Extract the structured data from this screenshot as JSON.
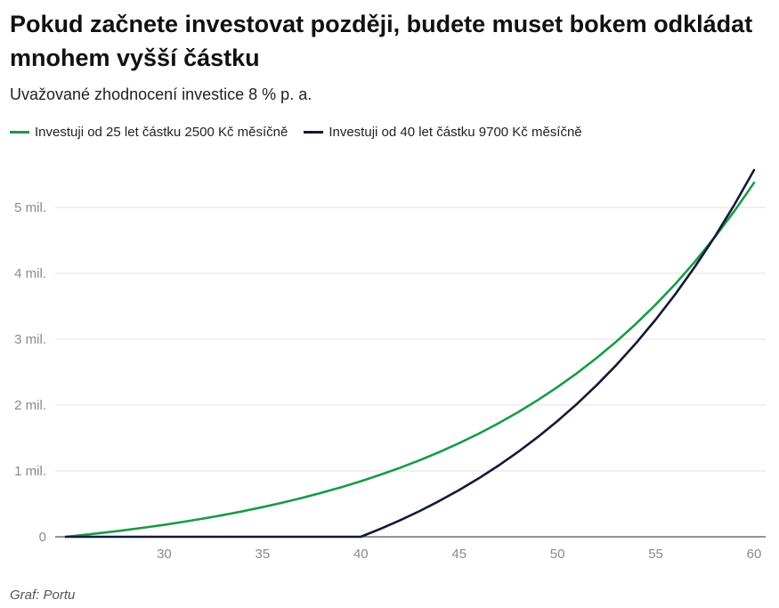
{
  "chart_data": {
    "type": "line",
    "title": "Pokud začnete investovat později, budete muset bokem odkládat mnohem vyšší částku",
    "subtitle": "Uvažované zhodnocení investice 8 % p. a.",
    "source": "Graf: Portu",
    "xlim": [
      25,
      60
    ],
    "ylim": [
      0,
      5700000
    ],
    "x_ticks": [
      30,
      35,
      40,
      45,
      50,
      55,
      60
    ],
    "y_ticks": [
      {
        "value": 0,
        "label": "0"
      },
      {
        "value": 1000000,
        "label": "1 mil."
      },
      {
        "value": 2000000,
        "label": "2 mil."
      },
      {
        "value": 3000000,
        "label": "3 mil."
      },
      {
        "value": 4000000,
        "label": "4 mil."
      },
      {
        "value": 5000000,
        "label": "5 mil."
      }
    ],
    "grid": true,
    "legend_position": "top-left",
    "series": [
      {
        "name": "Investuji od 25 let částku 2500 Kč měsíčně",
        "color": "#1a9a48",
        "x": [
          25,
          26,
          27,
          28,
          29,
          30,
          31,
          32,
          33,
          34,
          35,
          36,
          37,
          38,
          39,
          40,
          41,
          42,
          43,
          44,
          45,
          46,
          47,
          48,
          49,
          50,
          51,
          52,
          53,
          54,
          55,
          56,
          57,
          58,
          59,
          60
        ],
        "y": [
          0,
          31100,
          64800,
          101000,
          140000,
          182000,
          228000,
          277000,
          330000,
          388000,
          450000,
          517000,
          590000,
          668000,
          752000,
          843000,
          942000,
          1048000,
          1163000,
          1287000,
          1421000,
          1566000,
          1723000,
          1892000,
          2075000,
          2273000,
          2486000,
          2716000,
          2965000,
          3235000,
          3526000,
          3840000,
          4180000,
          4548000,
          4945000,
          5374000
        ]
      },
      {
        "name": "Investuji od 40 let částku 9700 Kč měsíčně",
        "color": "#141938",
        "x": [
          25,
          26,
          27,
          28,
          29,
          30,
          31,
          32,
          33,
          34,
          35,
          36,
          37,
          38,
          39,
          40,
          41,
          42,
          43,
          44,
          45,
          46,
          47,
          48,
          49,
          50,
          51,
          52,
          53,
          54,
          55,
          56,
          57,
          58,
          59,
          60
        ],
        "y": [
          0,
          0,
          0,
          0,
          0,
          0,
          0,
          0,
          0,
          0,
          0,
          0,
          0,
          0,
          0,
          0,
          120800,
          251000,
          392000,
          545000,
          710000,
          888000,
          1081000,
          1289000,
          1514000,
          1757000,
          2019000,
          2303000,
          2609000,
          2941000,
          3299000,
          3685000,
          4103000,
          4554000,
          5042000,
          5568000
        ]
      }
    ]
  }
}
